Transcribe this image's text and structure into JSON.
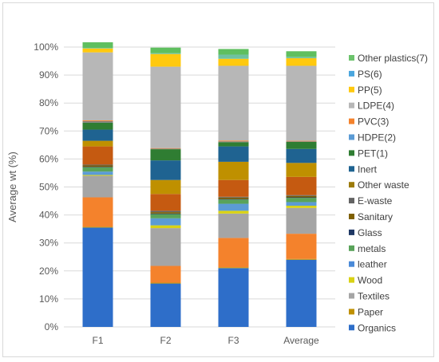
{
  "chart_data": {
    "type": "bar",
    "stacked": true,
    "ylabel": "Average wt (%)",
    "xlabel": "",
    "ylim": [
      0,
      100
    ],
    "y_ticks": [
      "0%",
      "10%",
      "20%",
      "30%",
      "40%",
      "50%",
      "60%",
      "70%",
      "80%",
      "90%",
      "100%"
    ],
    "grid": true,
    "legend_position": "right",
    "categories": [
      "F1",
      "F2",
      "F3",
      "Average"
    ],
    "series": [
      {
        "name": "Organics",
        "color": "#2e6ec9",
        "values": [
          35.5,
          15.5,
          21.0,
          24.0
        ]
      },
      {
        "name": "Paper",
        "color": "#bf9000",
        "values": [
          0.3,
          0.3,
          0.3,
          0.3
        ]
      },
      {
        "name": "Textiles",
        "color": "#f4822c",
        "values": [
          10.5,
          6.0,
          10.5,
          9.0
        ]
      },
      {
        "name": "Wood",
        "color": "#a5a5a5",
        "values": [
          7.7,
          13.5,
          8.7,
          9.2
        ]
      },
      {
        "name": "leather",
        "color": "#d9d214",
        "values": [
          0.3,
          1.0,
          1.0,
          0.8
        ]
      },
      {
        "name": "metals",
        "color": "#5b9bd5",
        "values": [
          1.2,
          2.5,
          2.5,
          1.3
        ]
      },
      {
        "name": "Glass",
        "color": "#59a35a",
        "values": [
          1.5,
          1.5,
          1.5,
          1.5
        ]
      },
      {
        "name": "Sanitary",
        "color": "#1f3864",
        "values": [
          0.2,
          0.2,
          0.2,
          0.2
        ]
      },
      {
        "name": "E-waste",
        "color": "#7f6000",
        "values": [
          0.5,
          0.5,
          0.5,
          0.5
        ]
      },
      {
        "name": "Other waste",
        "color": "#636363",
        "values": [
          0.3,
          0.5,
          0.3,
          0.3
        ]
      },
      {
        "name": "Inert",
        "color": "#c55a11",
        "values": [
          6.5,
          6.0,
          6.0,
          6.5
        ]
      },
      {
        "name": "PET(1)",
        "color": "#bf9000",
        "values": [
          2.0,
          5.0,
          6.5,
          5.0
        ]
      },
      {
        "name": "HDPE(2)",
        "color": "#1f6391",
        "values": [
          4.0,
          7.0,
          5.5,
          5.0
        ]
      },
      {
        "name": "PVC(3)",
        "color": "#2f7d32",
        "values": [
          2.5,
          4.0,
          1.5,
          2.5
        ]
      },
      {
        "name": "LDPE(4)",
        "color": "#7f7f7f",
        "values": [
          0.5,
          0.2,
          0.3,
          0.2
        ]
      },
      {
        "name": "PP(5)",
        "color": "#f2893a",
        "values": [
          0.3,
          0.2,
          0.3,
          0.2
        ]
      },
      {
        "name": "PS(6)",
        "color": "#b7b7b7",
        "values": [
          24.3,
          29.1,
          26.7,
          26.8
        ]
      },
      {
        "name": "Other plastics(7)",
        "color": "#ffc90e",
        "values": [
          1.4,
          4.5,
          2.5,
          2.7
        ]
      },
      {
        "name": "Other plastics(7) ",
        "color": "#6fc2a0",
        "values": [
          0.2,
          0.3,
          1.5,
          0.5
        ]
      },
      {
        "name": "Other plastics(7)  ",
        "color": "#5fbf5f",
        "values": [
          2.0,
          2.0,
          2.0,
          2.0
        ]
      }
    ],
    "legend": [
      {
        "label": "Other plastics(7)",
        "color": "#6cc36c"
      },
      {
        "label": "PS(6)",
        "color": "#4aa6de"
      },
      {
        "label": "PP(5)",
        "color": "#ffc90e"
      },
      {
        "label": "LDPE(4)",
        "color": "#b7b7b7"
      },
      {
        "label": "PVC(3)",
        "color": "#f4822c"
      },
      {
        "label": "HDPE(2)",
        "color": "#5b9bd5"
      },
      {
        "label": "PET(1)",
        "color": "#2f7d32"
      },
      {
        "label": "Inert",
        "color": "#1f6391"
      },
      {
        "label": "Other waste",
        "color": "#9c7b0a"
      },
      {
        "label": "E-waste",
        "color": "#636363"
      },
      {
        "label": "Sanitary",
        "color": "#7f6000"
      },
      {
        "label": "Glass",
        "color": "#1f3864"
      },
      {
        "label": "metals",
        "color": "#59a35a"
      },
      {
        "label": "leather",
        "color": "#4a8ad8"
      },
      {
        "label": "Wood",
        "color": "#d9d214"
      },
      {
        "label": "Textiles",
        "color": "#a5a5a5"
      },
      {
        "label": "Paper",
        "color": "#bf9000"
      },
      {
        "label": "Organics",
        "color": "#2e6ec9"
      }
    ]
  }
}
